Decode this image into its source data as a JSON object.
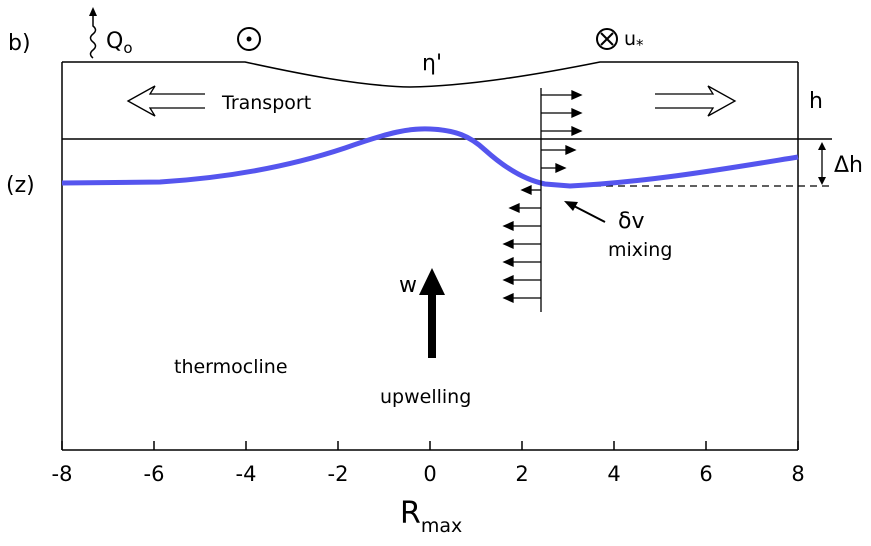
{
  "panel_label": "b)",
  "heat_flux_label": "Q",
  "heat_flux_sub": "o",
  "surface_label": "η'",
  "friction_label": "u",
  "friction_sub": "*",
  "transport_label": "Transport",
  "layer_label": "h",
  "depth_change_label": "Δh",
  "depth_axis_label": "(z)",
  "shear_label": "δv",
  "mixing_label": "mixing",
  "vertical_velocity_label": "w",
  "upwelling_label": "upwelling",
  "thermocline_label": "thermocline",
  "x_axis": {
    "label_main": "R",
    "label_sub": "max",
    "ticks": [
      "-8",
      "-6",
      "-4",
      "-2",
      "0",
      "2",
      "4",
      "6",
      "8"
    ],
    "range": [
      -8,
      8
    ]
  },
  "colors": {
    "line": "#000000",
    "thermocline_curve": "#5555ee"
  },
  "icons": {
    "out_of_page": "circled-dot-icon",
    "into_page": "circled-x-icon",
    "heat_flux": "wavy-arrow-icon"
  }
}
